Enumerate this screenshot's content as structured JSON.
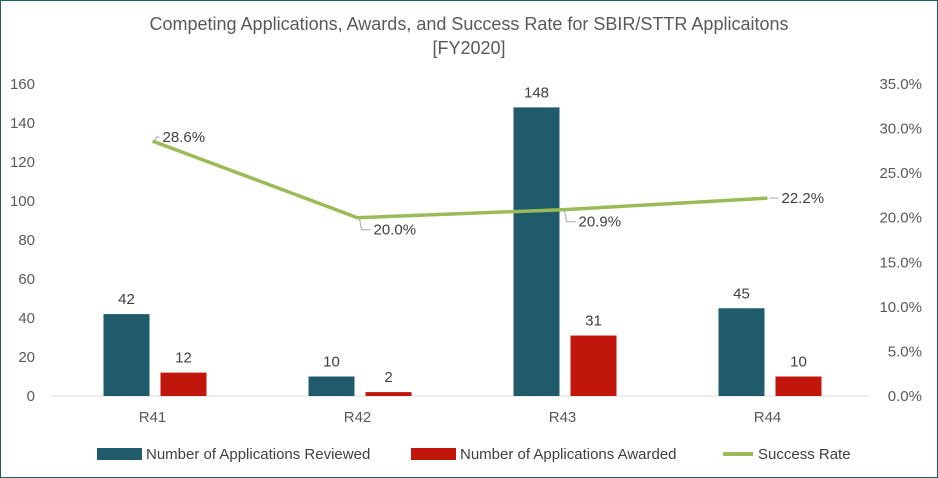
{
  "chart_data": {
    "type": "bar",
    "title": "Competing Applications, Awards, and Success Rate for SBIR/STTR Applicaitons",
    "subtitle": "[FY2020]",
    "categories": [
      "R41",
      "R42",
      "R43",
      "R44"
    ],
    "series": [
      {
        "name": "Number of Applications Reviewed",
        "type": "bar",
        "axis": "left",
        "color": "#1f5b6b",
        "values": [
          42,
          10,
          148,
          45
        ],
        "labels": [
          "42",
          "10",
          "148",
          "45"
        ]
      },
      {
        "name": "Number of Applications Awarded",
        "type": "bar",
        "axis": "left",
        "color": "#c0160b",
        "values": [
          12,
          2,
          31,
          10
        ],
        "labels": [
          "12",
          "2",
          "31",
          "10"
        ]
      },
      {
        "name": "Success Rate",
        "type": "line",
        "axis": "right",
        "color": "#9bbb59",
        "values": [
          28.6,
          20.0,
          20.9,
          22.2
        ],
        "labels": [
          "28.6%",
          "20.0%",
          "20.9%",
          "22.2%"
        ]
      }
    ],
    "y_left": {
      "min": 0,
      "max": 160,
      "ticks": [
        "0",
        "20",
        "40",
        "60",
        "80",
        "100",
        "120",
        "140",
        "160"
      ]
    },
    "y_right": {
      "min": 0,
      "max": 35,
      "ticks": [
        "0.0%",
        "5.0%",
        "10.0%",
        "15.0%",
        "20.0%",
        "25.0%",
        "30.0%",
        "35.0%"
      ]
    },
    "grid": false,
    "legend": "bottom"
  }
}
